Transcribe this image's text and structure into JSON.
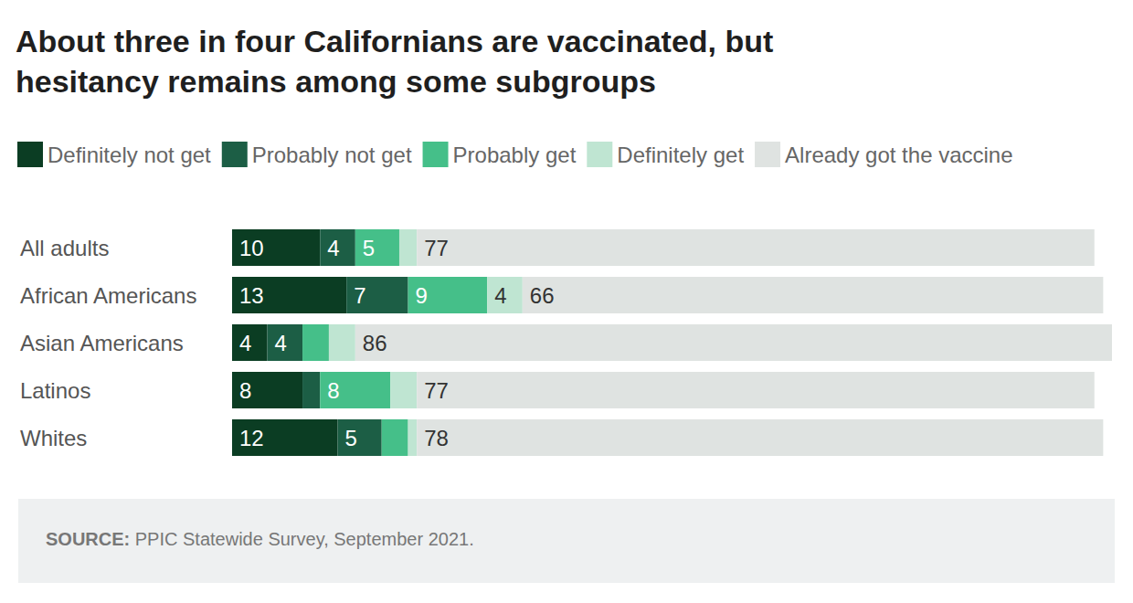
{
  "chart_data": {
    "type": "bar",
    "orientation": "horizontal",
    "stacked": true,
    "title": "About three in four Californians are vaccinated, but hesitancy remains among some subgroups",
    "source": "SOURCE: PPIC Statewide Survey, September 2021.",
    "categories": [
      "All adults",
      "African Americans",
      "Asian Americans",
      "Latinos",
      "Whites"
    ],
    "series": [
      {
        "name": "Definitely not get",
        "color": "#0b3d23",
        "values": [
          10,
          13,
          4,
          8,
          12
        ],
        "value_labels": [
          "10",
          "13",
          "4",
          "8",
          "12"
        ]
      },
      {
        "name": "Probably not get",
        "color": "#1c5e45",
        "values": [
          4,
          7,
          4,
          2,
          5
        ],
        "value_labels": [
          "4",
          "7",
          "4",
          null,
          "5"
        ]
      },
      {
        "name": "Probably get",
        "color": "#45bf89",
        "values": [
          5,
          9,
          3,
          8,
          3
        ],
        "value_labels": [
          "5",
          "9",
          null,
          "8",
          null
        ]
      },
      {
        "name": "Definitely get",
        "color": "#bfe5d2",
        "values": [
          2,
          4,
          3,
          3,
          1
        ],
        "value_labels": [
          null,
          "4",
          null,
          null,
          null
        ]
      },
      {
        "name": "Already got the vaccine",
        "color": "#dfe3e1",
        "values": [
          77,
          66,
          86,
          77,
          78
        ],
        "value_labels": [
          "77",
          "66",
          "86",
          "77",
          "78"
        ]
      }
    ],
    "xlim": [
      0,
      100
    ],
    "data_labels": true,
    "tick_labels": false,
    "grid": false,
    "legend": "top-left"
  }
}
